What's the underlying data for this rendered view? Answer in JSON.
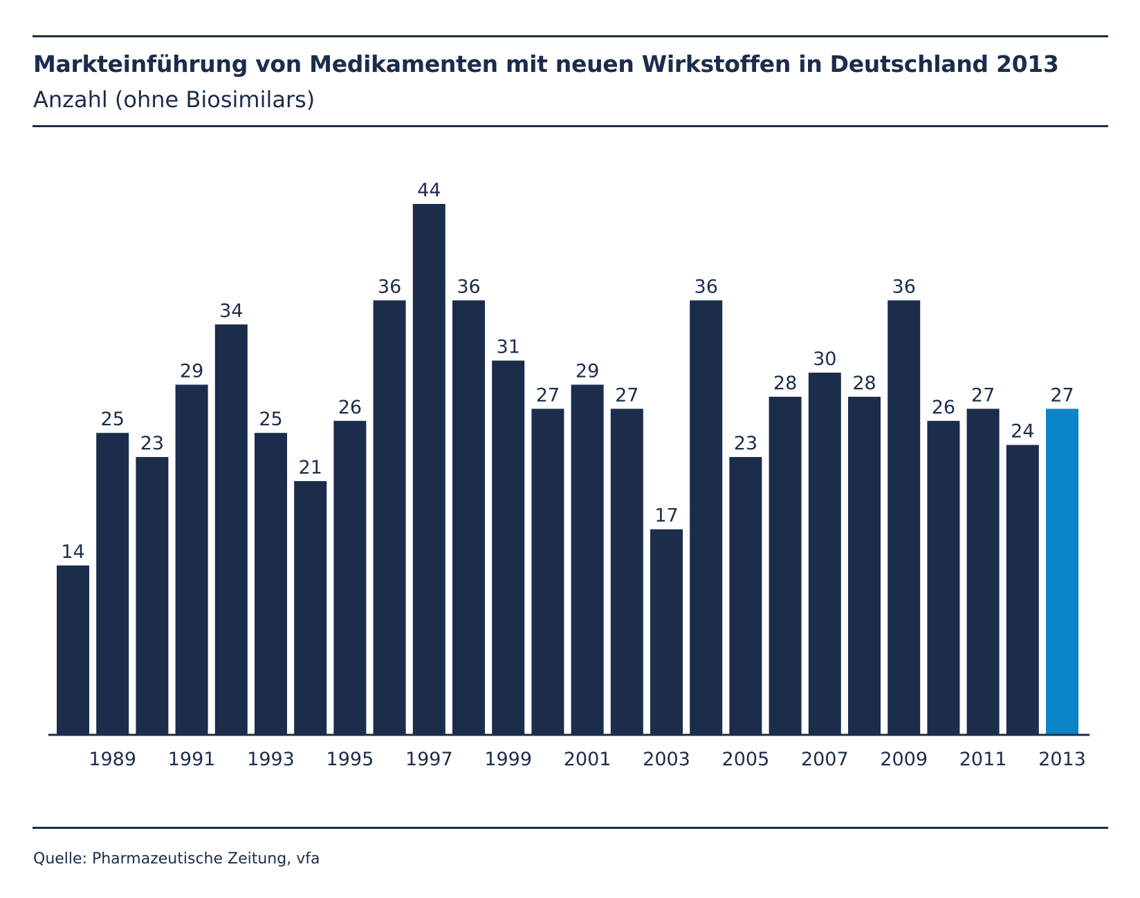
{
  "header": {
    "title": "Markteinführung von Medikamenten mit neuen Wirkstoffen in Deutschland 2013",
    "subtitle": "Anzahl (ohne Biosimilars)"
  },
  "footer": {
    "source": "Quelle: Pharmazeutische Zeitung, vfa"
  },
  "colors": {
    "bar": "#1b2d4b",
    "highlight_bar": "#0a85c7",
    "axis": "#1b2d4b"
  },
  "chart_data": {
    "type": "bar",
    "title": "Markteinführung von Medikamenten mit neuen Wirkstoffen in Deutschland 2013",
    "subtitle": "Anzahl (ohne Biosimilars)",
    "categories": [
      "1988",
      "1989",
      "1990",
      "1991",
      "1992",
      "1993",
      "1994",
      "1995",
      "1996",
      "1997",
      "1998",
      "1999",
      "2000",
      "2001",
      "2002",
      "2003",
      "2004",
      "2005",
      "2006",
      "2007",
      "2008",
      "2009",
      "2010",
      "2011",
      "2012",
      "2013"
    ],
    "values": [
      14,
      25,
      23,
      29,
      34,
      25,
      21,
      26,
      36,
      44,
      36,
      31,
      27,
      29,
      27,
      17,
      36,
      23,
      28,
      30,
      28,
      36,
      26,
      27,
      24,
      27
    ],
    "x_tick_labels": [
      "1989",
      "1991",
      "1993",
      "1995",
      "1997",
      "1999",
      "2001",
      "2003",
      "2005",
      "2007",
      "2009",
      "2011",
      "2013"
    ],
    "highlight_category": "2013",
    "ylim": [
      0,
      44
    ],
    "grid": false,
    "legend": "none",
    "data_labels": true
  }
}
